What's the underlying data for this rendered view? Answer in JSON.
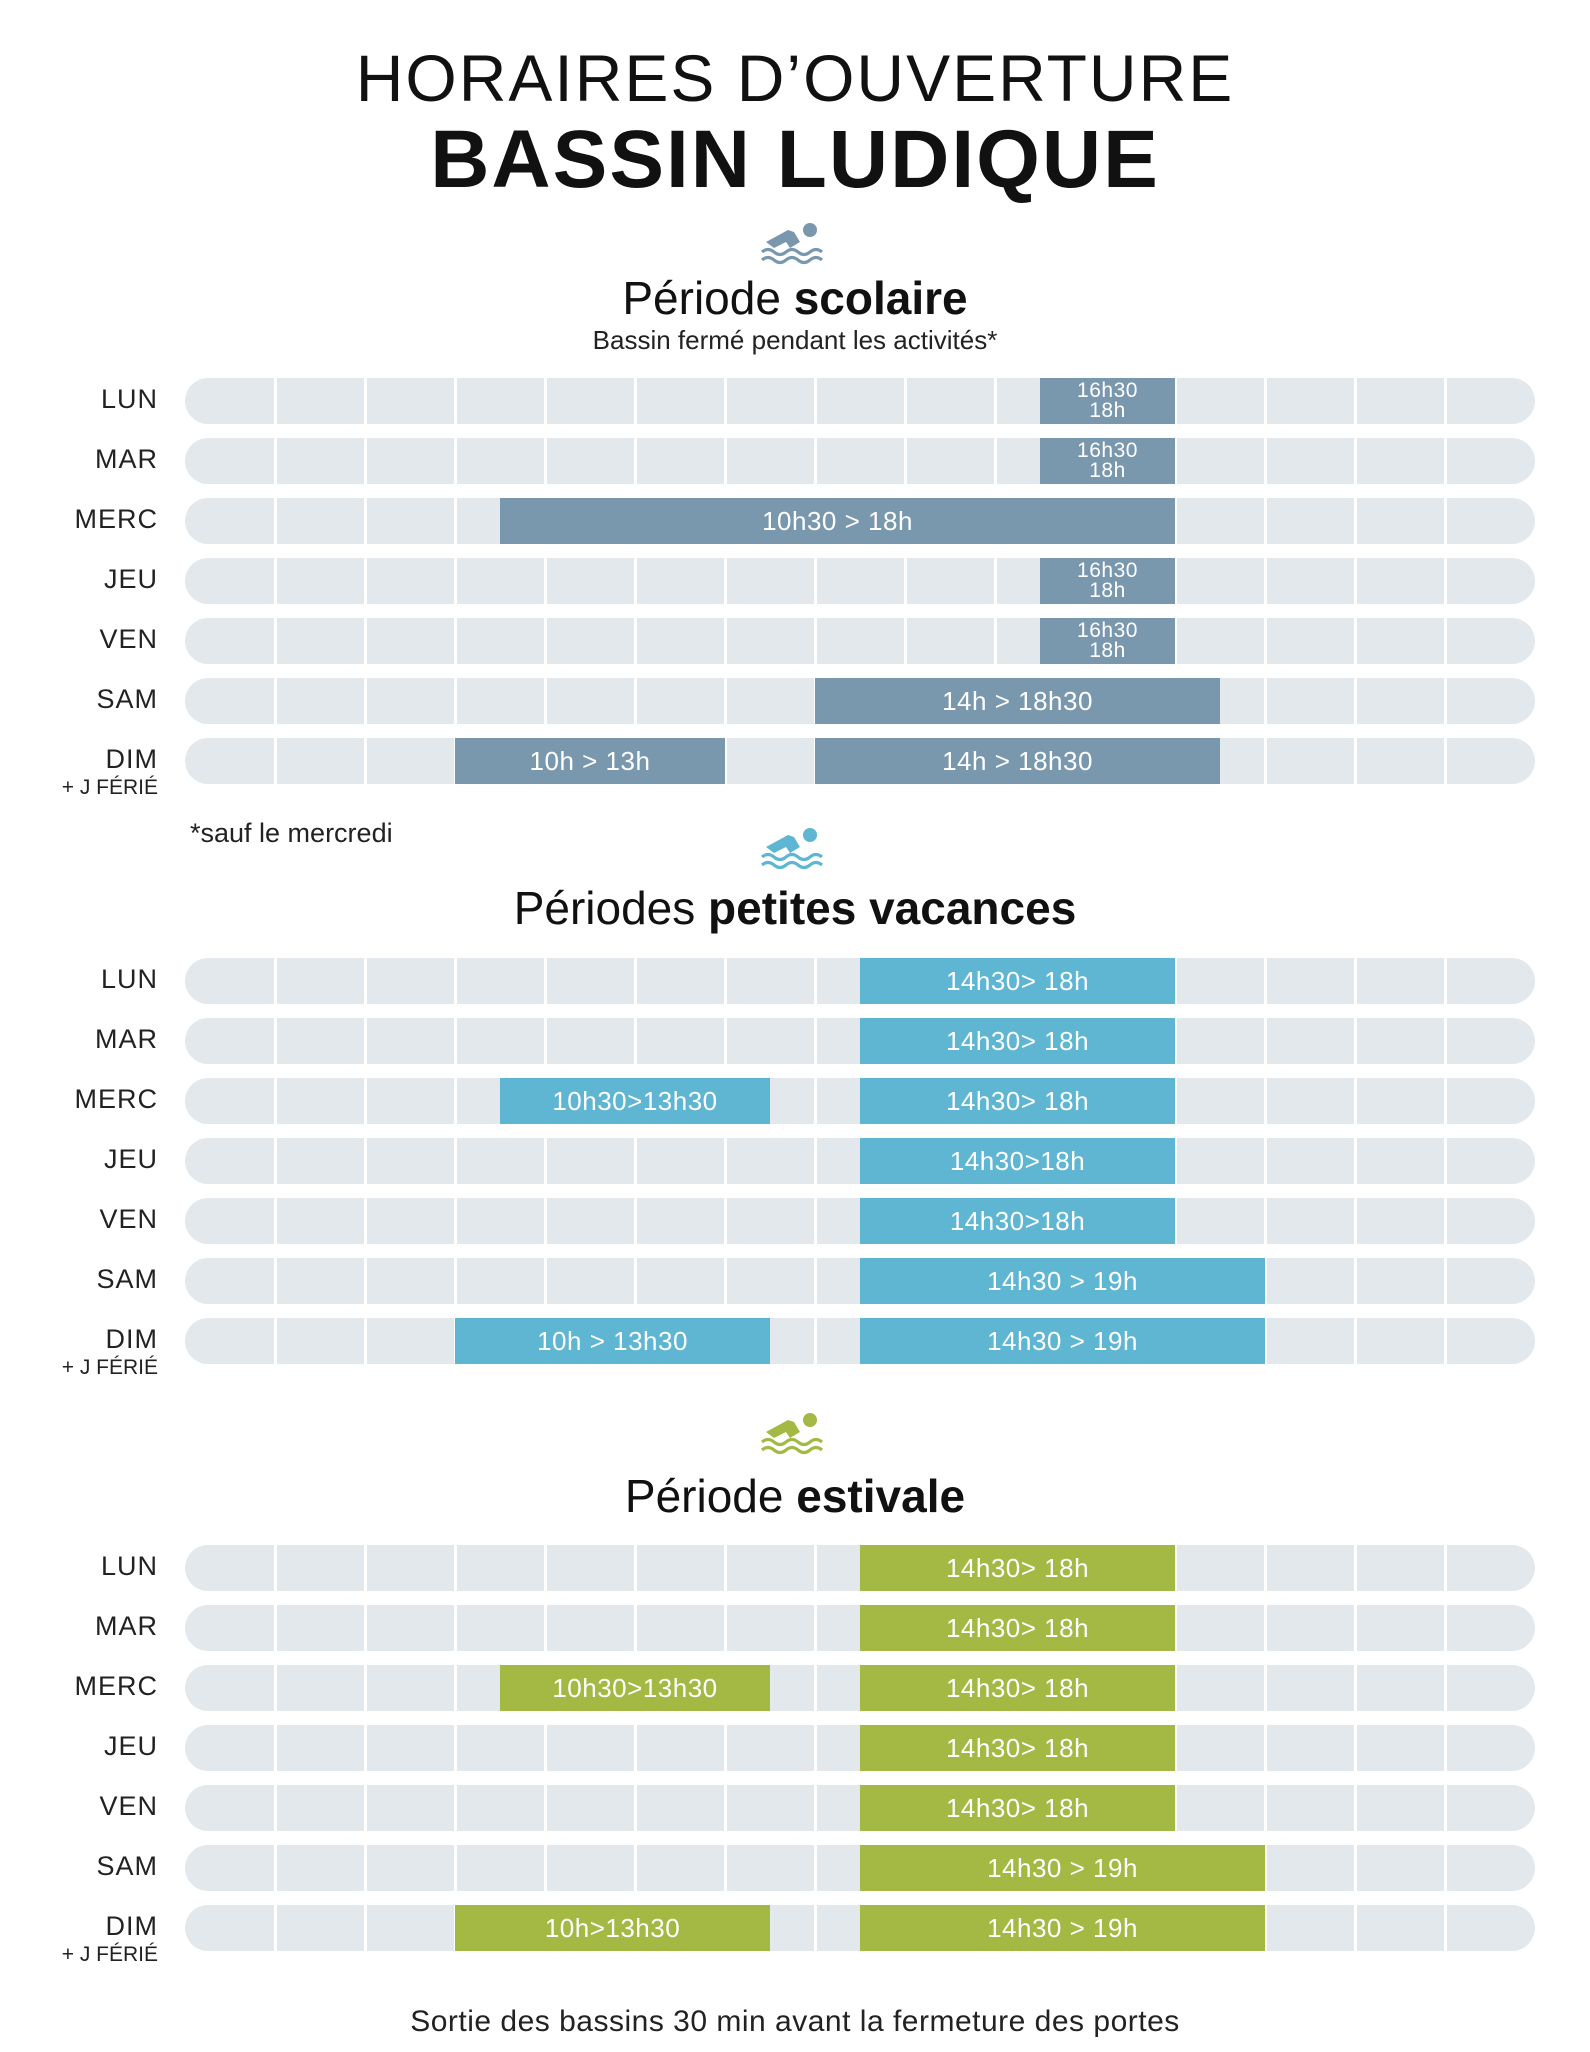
{
  "title": {
    "line1": "HORAIRES D’OUVERTURE",
    "line2": "BASSIN LUDIQUE"
  },
  "icon_name": "swimmer-icon",
  "sections": [
    {
      "heading_normal": "Période",
      "heading_bold": "scolaire",
      "subtitle": "Bassin fermé pendant les activités*",
      "color": "#7a98ad",
      "rows": [
        {
          "day": "LUN",
          "sub": "",
          "slots": [
            {
              "start": "16h30",
              "end": "18h",
              "label1": "16h30",
              "label2": "18h"
            }
          ]
        },
        {
          "day": "MAR",
          "sub": "",
          "slots": [
            {
              "start": "16h30",
              "end": "18h",
              "label1": "16h30",
              "label2": "18h"
            }
          ]
        },
        {
          "day": "MERC",
          "sub": "",
          "slots": [
            {
              "start": "10h30",
              "end": "18h",
              "label1": "10h30 > 18h",
              "label2": ""
            }
          ]
        },
        {
          "day": "JEU",
          "sub": "",
          "slots": [
            {
              "start": "16h30",
              "end": "18h",
              "label1": "16h30",
              "label2": "18h"
            }
          ]
        },
        {
          "day": "VEN",
          "sub": "",
          "slots": [
            {
              "start": "16h30",
              "end": "18h",
              "label1": "16h30",
              "label2": "18h"
            }
          ]
        },
        {
          "day": "SAM",
          "sub": "",
          "slots": [
            {
              "start": "14h",
              "end": "18h30",
              "label1": "14h > 18h30",
              "label2": ""
            }
          ]
        },
        {
          "day": "DIM",
          "sub": "+ J FÉRIÉ",
          "slots": [
            {
              "start": "10h",
              "end": "13h",
              "label1": "10h > 13h",
              "label2": ""
            },
            {
              "start": "14h",
              "end": "18h30",
              "label1": "14h > 18h30",
              "label2": ""
            }
          ]
        }
      ],
      "note": "*sauf le mercredi"
    },
    {
      "heading_normal": "Périodes",
      "heading_bold": "petites vacances",
      "subtitle": "",
      "color": "#5eb6d3",
      "rows": [
        {
          "day": "LUN",
          "sub": "",
          "slots": [
            {
              "start": "14h30",
              "end": "18h",
              "label1": "14h30> 18h",
              "label2": ""
            }
          ]
        },
        {
          "day": "MAR",
          "sub": "",
          "slots": [
            {
              "start": "14h30",
              "end": "18h",
              "label1": "14h30> 18h",
              "label2": ""
            }
          ]
        },
        {
          "day": "MERC",
          "sub": "",
          "slots": [
            {
              "start": "10h30",
              "end": "13h30",
              "label1": "10h30>13h30",
              "label2": ""
            },
            {
              "start": "14h30",
              "end": "18h",
              "label1": "14h30> 18h",
              "label2": ""
            }
          ]
        },
        {
          "day": "JEU",
          "sub": "",
          "slots": [
            {
              "start": "14h30",
              "end": "18h",
              "label1": "14h30>18h",
              "label2": ""
            }
          ]
        },
        {
          "day": "VEN",
          "sub": "",
          "slots": [
            {
              "start": "14h30",
              "end": "18h",
              "label1": "14h30>18h",
              "label2": ""
            }
          ]
        },
        {
          "day": "SAM",
          "sub": "",
          "slots": [
            {
              "start": "14h30",
              "end": "19h",
              "label1": "14h30 > 19h",
              "label2": ""
            }
          ]
        },
        {
          "day": "DIM",
          "sub": "+ J FÉRIÉ",
          "slots": [
            {
              "start": "10h",
              "end": "13h30",
              "label1": "10h > 13h30",
              "label2": ""
            },
            {
              "start": "14h30",
              "end": "19h",
              "label1": "14h30 > 19h",
              "label2": ""
            }
          ]
        }
      ],
      "note": ""
    },
    {
      "heading_normal": "Période",
      "heading_bold": "estivale",
      "subtitle": "",
      "color": "#a3b944",
      "rows": [
        {
          "day": "LUN",
          "sub": "",
          "slots": [
            {
              "start": "14h30",
              "end": "18h",
              "label1": "14h30> 18h",
              "label2": ""
            }
          ]
        },
        {
          "day": "MAR",
          "sub": "",
          "slots": [
            {
              "start": "14h30",
              "end": "18h",
              "label1": "14h30> 18h",
              "label2": ""
            }
          ]
        },
        {
          "day": "MERC",
          "sub": "",
          "slots": [
            {
              "start": "10h30",
              "end": "13h30",
              "label1": "10h30>13h30",
              "label2": ""
            },
            {
              "start": "14h30",
              "end": "18h",
              "label1": "14h30> 18h",
              "label2": ""
            }
          ]
        },
        {
          "day": "JEU",
          "sub": "",
          "slots": [
            {
              "start": "14h30",
              "end": "18h",
              "label1": "14h30> 18h",
              "label2": ""
            }
          ]
        },
        {
          "day": "VEN",
          "sub": "",
          "slots": [
            {
              "start": "14h30",
              "end": "18h",
              "label1": "14h30> 18h",
              "label2": ""
            }
          ]
        },
        {
          "day": "SAM",
          "sub": "",
          "slots": [
            {
              "start": "14h30",
              "end": "19h",
              "label1": "14h30 > 19h",
              "label2": ""
            }
          ]
        },
        {
          "day": "DIM",
          "sub": "+ J FÉRIÉ",
          "slots": [
            {
              "start": "10h",
              "end": "13h30",
              "label1": "10h>13h30",
              "label2": ""
            },
            {
              "start": "14h30",
              "end": "19h",
              "label1": "14h30 > 19h",
              "label2": ""
            }
          ]
        }
      ],
      "note": ""
    }
  ],
  "footer": "Sortie des bassins 30 min avant la fermeture des portes"
}
